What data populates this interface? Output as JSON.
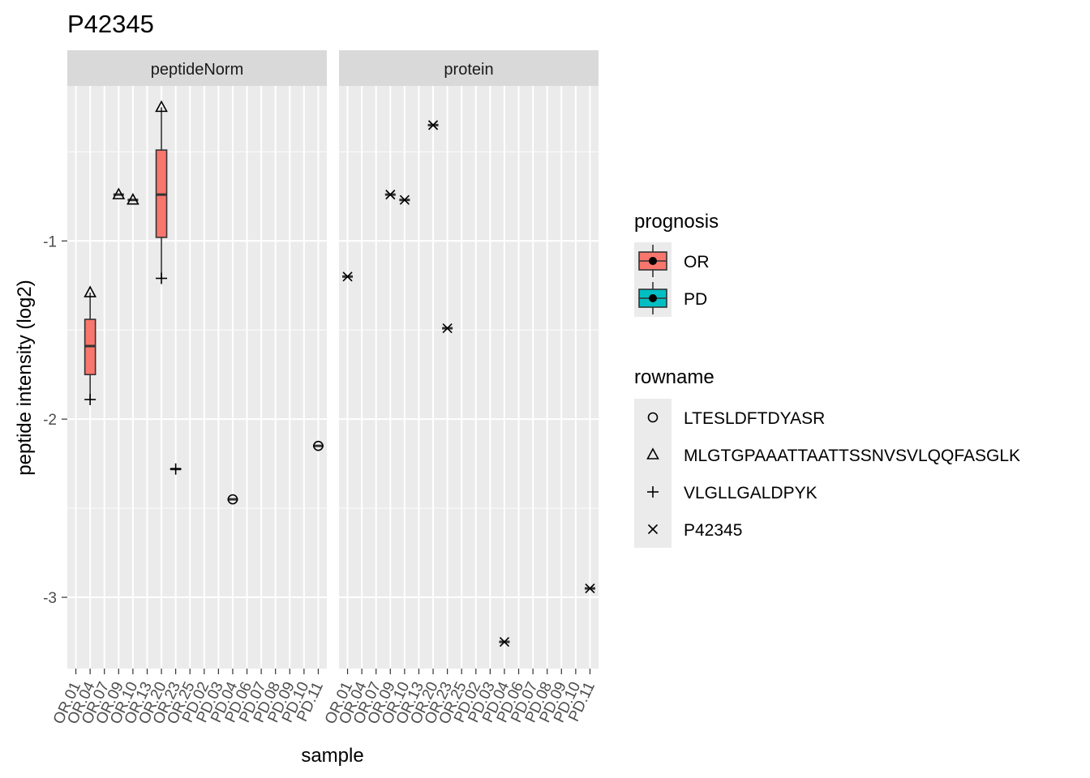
{
  "chart_data": {
    "type": "boxplot",
    "title": "P42345",
    "xlabel": "sample",
    "ylabel": "peptide intensity (log2)",
    "ylim": [
      -3.4,
      -0.13
    ],
    "y_ticks": [
      -3,
      -2,
      -1
    ],
    "y_tick_labels": [
      "-3",
      "-2",
      "-1"
    ],
    "grid": true,
    "legend_position": "right",
    "categories": [
      "OR.01",
      "OR.04",
      "OR.07",
      "OR.09",
      "OR.10",
      "OR.13",
      "OR.20",
      "OR.23",
      "OR.25",
      "PD.02",
      "PD.03",
      "PD.04",
      "PD.06",
      "PD.07",
      "PD.08",
      "PD.09",
      "PD.10",
      "PD.11"
    ],
    "panels": [
      {
        "label": "peptideNorm",
        "boxes": [
          {
            "category": "OR.04",
            "prognosis": "OR",
            "q1": -1.75,
            "median": -1.59,
            "q3": -1.44,
            "lower": -1.89,
            "upper": -1.29
          },
          {
            "category": "OR.20",
            "prognosis": "OR",
            "q1": -0.98,
            "median": -0.74,
            "q3": -0.49,
            "lower": -1.21,
            "upper": -0.25
          }
        ],
        "points": [
          {
            "category": "OR.04",
            "rowname": "MLGTGPAAATTAATTSSNVSVLQQFASGLK",
            "y": -1.29
          },
          {
            "category": "OR.04",
            "rowname": "VLGLLGALDPYK",
            "y": -1.89
          },
          {
            "category": "OR.09",
            "rowname": "MLGTGPAAATTAATTSSNVSVLQQFASGLK",
            "y": -0.74
          },
          {
            "category": "OR.10",
            "rowname": "MLGTGPAAATTAATTSSNVSVLQQFASGLK",
            "y": -0.77
          },
          {
            "category": "OR.20",
            "rowname": "MLGTGPAAATTAATTSSNVSVLQQFASGLK",
            "y": -0.25
          },
          {
            "category": "OR.20",
            "rowname": "VLGLLGALDPYK",
            "y": -1.21
          },
          {
            "category": "OR.23",
            "rowname": "VLGLLGALDPYK",
            "y": -2.28
          },
          {
            "category": "PD.04",
            "rowname": "LTESLDFTDYASR",
            "y": -2.45
          },
          {
            "category": "PD.11",
            "rowname": "LTESLDFTDYASR",
            "y": -2.15
          }
        ]
      },
      {
        "label": "protein",
        "boxes": [],
        "points": [
          {
            "category": "OR.01",
            "rowname": "P42345",
            "y": -1.2
          },
          {
            "category": "OR.09",
            "rowname": "P42345",
            "y": -0.74
          },
          {
            "category": "OR.10",
            "rowname": "P42345",
            "y": -0.77
          },
          {
            "category": "OR.20",
            "rowname": "P42345",
            "y": -0.35
          },
          {
            "category": "OR.23",
            "rowname": "P42345",
            "y": -1.49
          },
          {
            "category": "PD.04",
            "rowname": "P42345",
            "y": -3.25
          },
          {
            "category": "PD.11",
            "rowname": "P42345",
            "y": -2.95
          }
        ]
      }
    ],
    "legends": [
      {
        "title": "prognosis",
        "entries": [
          {
            "label": "OR",
            "color": "#F8766D"
          },
          {
            "label": "PD",
            "color": "#00BFC4"
          }
        ]
      },
      {
        "title": "rowname",
        "entries": [
          {
            "label": "LTESLDFTDYASR",
            "shape": "circle"
          },
          {
            "label": "MLGTGPAAATTAATTSSNVSVLQQFASGLK",
            "shape": "triangle"
          },
          {
            "label": "VLGLLGALDPYK",
            "shape": "plus"
          },
          {
            "label": "P42345",
            "shape": "cross"
          }
        ]
      }
    ],
    "colors": {
      "panel_bg": "#EBEBEB",
      "strip_bg": "#D9D9D9",
      "grid": "#FFFFFF",
      "OR": "#F8766D",
      "PD": "#00BFC4"
    }
  }
}
